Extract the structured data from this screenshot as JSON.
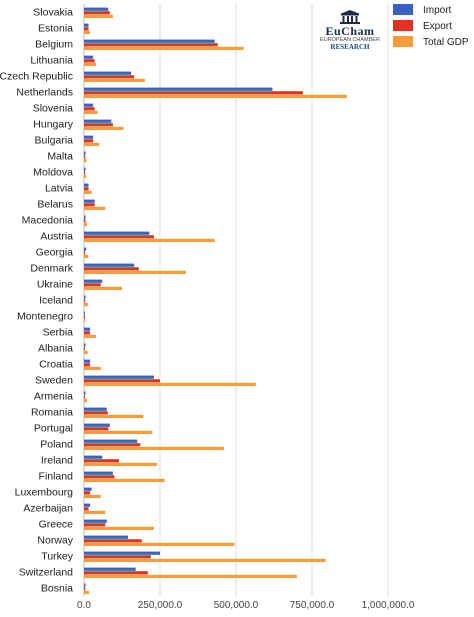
{
  "logo": {
    "name": "EuCham",
    "subtitle": "EUROPEAN CHAMBER",
    "research": "RESEARCH"
  },
  "colors": {
    "import": "#3a62c4",
    "export": "#dd3322",
    "gdp": "#f99b3a",
    "grid": "#dddddd"
  },
  "chart_data": {
    "type": "bar",
    "orientation": "horizontal",
    "title": "",
    "xlabel": "",
    "ylabel": "",
    "xlim": [
      0,
      1000000
    ],
    "ticks": [
      0,
      250000,
      500000,
      750000,
      1000000
    ],
    "tick_labels": [
      "0.0",
      "250,000.0",
      "500,000.0",
      "750,000.0",
      "1,000,000.0"
    ],
    "grid": true,
    "legend_position": "top-right",
    "categories": [
      "Slovakia",
      "Estonia",
      "Belgium",
      "Lithuania",
      "Czech Republic",
      "Netherlands",
      "Slovenia",
      "Hungary",
      "Bulgaria",
      "Malta",
      "Moldova",
      "Latvia",
      "Belarus",
      "Macedonia",
      "Austria",
      "Georgia",
      "Denmark",
      "Ukraine",
      "Iceland",
      "Montenegro",
      "Serbia",
      "Albania",
      "Croatia",
      "Sweden",
      "Armenia",
      "Romania",
      "Portugal",
      "Poland",
      "Ireland",
      "Finland",
      "Luxembourg",
      "Azerbaijan",
      "Greece",
      "Norway",
      "Turkey",
      "Switzerland",
      "Bosnia"
    ],
    "series": [
      {
        "name": "Import",
        "values": [
          80000,
          15000,
          430000,
          30000,
          155000,
          620000,
          30000,
          90000,
          30000,
          5000,
          5000,
          15000,
          35000,
          5000,
          215000,
          7000,
          165000,
          60000,
          5000,
          2000,
          20000,
          5000,
          20000,
          230000,
          5000,
          75000,
          85000,
          175000,
          60000,
          95000,
          25000,
          20000,
          75000,
          145000,
          250000,
          170000,
          5000
        ]
      },
      {
        "name": "Export",
        "values": [
          85000,
          15000,
          440000,
          35000,
          165000,
          720000,
          35000,
          95000,
          30000,
          4000,
          3000,
          15000,
          35000,
          5000,
          230000,
          4000,
          180000,
          55000,
          4000,
          1000,
          20000,
          3000,
          20000,
          250000,
          3000,
          78000,
          80000,
          185000,
          115000,
          100000,
          20000,
          15000,
          70000,
          190000,
          220000,
          210000,
          4000
        ]
      },
      {
        "name": "Total GDP",
        "values": [
          95000,
          20000,
          525000,
          40000,
          200000,
          865000,
          45000,
          130000,
          50000,
          8000,
          7000,
          25000,
          70000,
          10000,
          430000,
          14000,
          335000,
          125000,
          13000,
          4000,
          40000,
          12000,
          55000,
          565000,
          10000,
          195000,
          225000,
          460000,
          240000,
          265000,
          55000,
          70000,
          230000,
          495000,
          795000,
          700000,
          17000
        ]
      }
    ]
  }
}
